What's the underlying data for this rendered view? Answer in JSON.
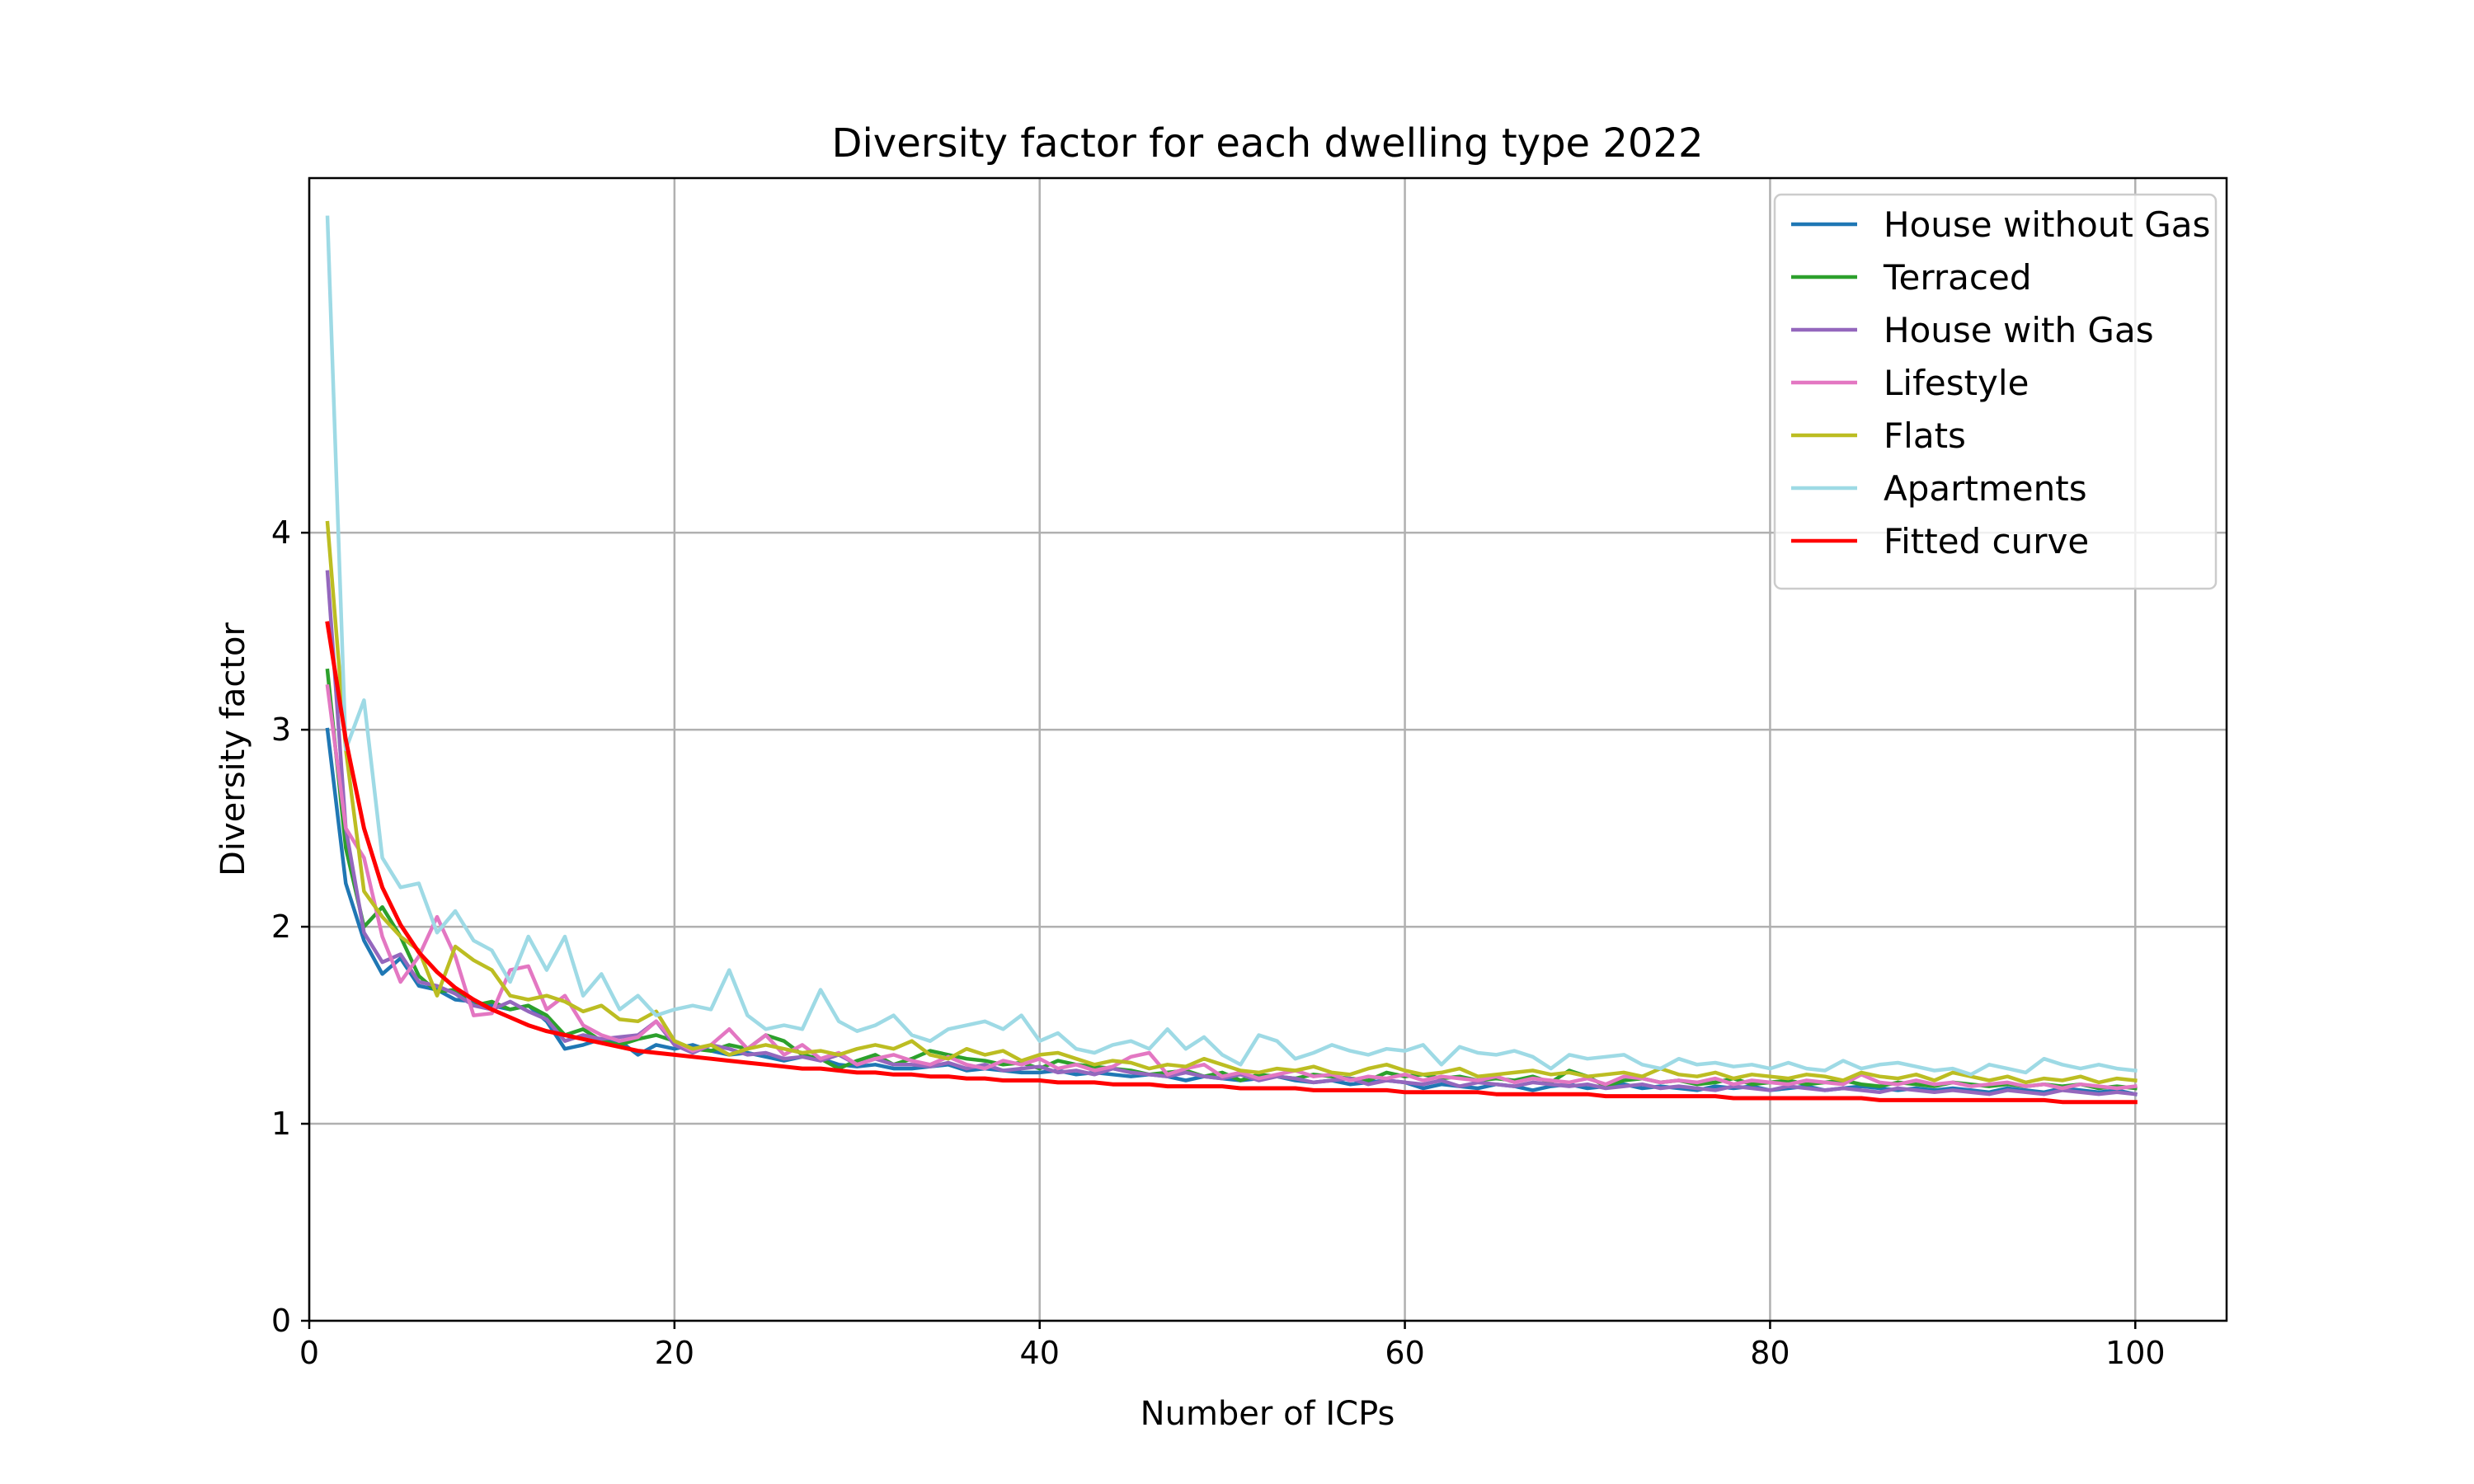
{
  "chart_data": {
    "type": "line",
    "title": "Diversity factor for each dwelling type 2022",
    "xlabel": "Number of ICPs",
    "ylabel": "Diversity factor",
    "xlim": [
      0,
      105
    ],
    "ylim": [
      0,
      5.8
    ],
    "xticks": [
      0,
      20,
      40,
      60,
      80,
      100
    ],
    "yticks": [
      0,
      1,
      2,
      3,
      4
    ],
    "grid": true,
    "legend_position": "top-right",
    "series": [
      {
        "name": "House without Gas",
        "color": "#1f77b4",
        "x_start": 1,
        "x_step": 1,
        "values": [
          3.0,
          2.22,
          1.93,
          1.76,
          1.84,
          1.7,
          1.68,
          1.63,
          1.62,
          1.6,
          1.58,
          1.6,
          1.52,
          1.38,
          1.4,
          1.43,
          1.42,
          1.35,
          1.4,
          1.38,
          1.4,
          1.37,
          1.35,
          1.36,
          1.34,
          1.32,
          1.34,
          1.33,
          1.3,
          1.29,
          1.3,
          1.28,
          1.28,
          1.29,
          1.3,
          1.27,
          1.28,
          1.27,
          1.26,
          1.26,
          1.27,
          1.25,
          1.26,
          1.25,
          1.24,
          1.25,
          1.24,
          1.22,
          1.24,
          1.23,
          1.22,
          1.23,
          1.24,
          1.22,
          1.21,
          1.22,
          1.2,
          1.21,
          1.22,
          1.21,
          1.18,
          1.2,
          1.19,
          1.18,
          1.2,
          1.19,
          1.17,
          1.19,
          1.2,
          1.18,
          1.19,
          1.2,
          1.18,
          1.19,
          1.18,
          1.17,
          1.19,
          1.18,
          1.19,
          1.17,
          1.18,
          1.19,
          1.17,
          1.18,
          1.19,
          1.18,
          1.17,
          1.18,
          1.17,
          1.18,
          1.17,
          1.16,
          1.18,
          1.17,
          1.16,
          1.18,
          1.17,
          1.16,
          1.17,
          1.15
        ]
      },
      {
        "name": "Terraced",
        "color": "#2ca02c",
        "x_start": 1,
        "x_step": 1,
        "values": [
          3.3,
          2.4,
          2.0,
          2.1,
          1.95,
          1.75,
          1.67,
          1.68,
          1.6,
          1.62,
          1.58,
          1.6,
          1.55,
          1.45,
          1.48,
          1.42,
          1.4,
          1.43,
          1.45,
          1.42,
          1.38,
          1.37,
          1.4,
          1.38,
          1.45,
          1.42,
          1.35,
          1.33,
          1.28,
          1.32,
          1.35,
          1.3,
          1.33,
          1.37,
          1.35,
          1.33,
          1.32,
          1.3,
          1.31,
          1.28,
          1.32,
          1.3,
          1.29,
          1.28,
          1.27,
          1.25,
          1.26,
          1.27,
          1.24,
          1.26,
          1.22,
          1.25,
          1.24,
          1.23,
          1.25,
          1.24,
          1.23,
          1.22,
          1.26,
          1.24,
          1.25,
          1.23,
          1.24,
          1.22,
          1.23,
          1.22,
          1.24,
          1.21,
          1.27,
          1.24,
          1.19,
          1.22,
          1.23,
          1.21,
          1.22,
          1.2,
          1.21,
          1.23,
          1.2,
          1.21,
          1.22,
          1.2,
          1.21,
          1.22,
          1.2,
          1.19,
          1.21,
          1.2,
          1.19,
          1.21,
          1.2,
          1.19,
          1.2,
          1.19,
          1.2,
          1.19,
          1.2,
          1.18,
          1.19,
          1.18
        ]
      },
      {
        "name": "House with Gas",
        "color": "#9467bd",
        "x_start": 1,
        "x_step": 1,
        "values": [
          3.8,
          2.5,
          1.97,
          1.82,
          1.86,
          1.72,
          1.7,
          1.66,
          1.6,
          1.58,
          1.62,
          1.57,
          1.53,
          1.42,
          1.45,
          1.43,
          1.44,
          1.45,
          1.52,
          1.4,
          1.36,
          1.4,
          1.38,
          1.35,
          1.36,
          1.33,
          1.34,
          1.32,
          1.35,
          1.3,
          1.33,
          1.3,
          1.3,
          1.29,
          1.31,
          1.28,
          1.3,
          1.27,
          1.28,
          1.29,
          1.26,
          1.27,
          1.25,
          1.28,
          1.26,
          1.25,
          1.24,
          1.26,
          1.24,
          1.23,
          1.25,
          1.22,
          1.24,
          1.23,
          1.21,
          1.22,
          1.23,
          1.2,
          1.22,
          1.21,
          1.2,
          1.22,
          1.19,
          1.21,
          1.2,
          1.19,
          1.21,
          1.2,
          1.19,
          1.2,
          1.18,
          1.19,
          1.2,
          1.18,
          1.19,
          1.18,
          1.17,
          1.19,
          1.18,
          1.17,
          1.19,
          1.18,
          1.17,
          1.18,
          1.17,
          1.16,
          1.18,
          1.17,
          1.16,
          1.17,
          1.16,
          1.15,
          1.17,
          1.16,
          1.15,
          1.17,
          1.16,
          1.15,
          1.16,
          1.15
        ]
      },
      {
        "name": "Lifestyle",
        "color": "#e377c2",
        "x_start": 1,
        "x_step": 1,
        "values": [
          3.22,
          2.5,
          2.35,
          1.95,
          1.72,
          1.85,
          2.05,
          1.85,
          1.55,
          1.56,
          1.78,
          1.8,
          1.58,
          1.65,
          1.5,
          1.45,
          1.42,
          1.44,
          1.52,
          1.42,
          1.37,
          1.4,
          1.48,
          1.38,
          1.45,
          1.35,
          1.4,
          1.33,
          1.36,
          1.3,
          1.33,
          1.35,
          1.32,
          1.3,
          1.34,
          1.3,
          1.28,
          1.32,
          1.3,
          1.33,
          1.28,
          1.3,
          1.27,
          1.29,
          1.34,
          1.36,
          1.25,
          1.28,
          1.3,
          1.24,
          1.26,
          1.23,
          1.25,
          1.27,
          1.24,
          1.25,
          1.22,
          1.24,
          1.23,
          1.25,
          1.22,
          1.24,
          1.23,
          1.22,
          1.24,
          1.21,
          1.23,
          1.22,
          1.21,
          1.23,
          1.2,
          1.24,
          1.23,
          1.21,
          1.22,
          1.21,
          1.23,
          1.2,
          1.22,
          1.21,
          1.2,
          1.22,
          1.21,
          1.2,
          1.25,
          1.21,
          1.2,
          1.22,
          1.2,
          1.21,
          1.19,
          1.2,
          1.21,
          1.19,
          1.2,
          1.18,
          1.2,
          1.19,
          1.18,
          1.19
        ]
      },
      {
        "name": "Flats",
        "color": "#bcbd22",
        "x_start": 1,
        "x_step": 1,
        "values": [
          4.05,
          2.9,
          2.18,
          2.05,
          1.95,
          1.88,
          1.65,
          1.9,
          1.83,
          1.78,
          1.65,
          1.63,
          1.65,
          1.62,
          1.57,
          1.6,
          1.53,
          1.52,
          1.57,
          1.42,
          1.38,
          1.4,
          1.35,
          1.38,
          1.4,
          1.38,
          1.36,
          1.37,
          1.35,
          1.38,
          1.4,
          1.38,
          1.42,
          1.35,
          1.33,
          1.38,
          1.35,
          1.37,
          1.32,
          1.35,
          1.36,
          1.33,
          1.3,
          1.32,
          1.31,
          1.28,
          1.3,
          1.29,
          1.33,
          1.3,
          1.27,
          1.26,
          1.28,
          1.27,
          1.29,
          1.26,
          1.25,
          1.28,
          1.3,
          1.27,
          1.25,
          1.26,
          1.28,
          1.24,
          1.25,
          1.26,
          1.27,
          1.25,
          1.26,
          1.24,
          1.25,
          1.26,
          1.24,
          1.28,
          1.25,
          1.24,
          1.26,
          1.23,
          1.25,
          1.24,
          1.23,
          1.25,
          1.24,
          1.22,
          1.26,
          1.24,
          1.23,
          1.25,
          1.22,
          1.26,
          1.24,
          1.22,
          1.24,
          1.21,
          1.23,
          1.22,
          1.24,
          1.21,
          1.23,
          1.22
        ]
      },
      {
        "name": "Apartments",
        "color": "#9edae5",
        "x_start": 1,
        "x_step": 1,
        "values": [
          5.6,
          2.9,
          3.15,
          2.35,
          2.2,
          2.22,
          1.97,
          2.08,
          1.93,
          1.88,
          1.72,
          1.95,
          1.78,
          1.95,
          1.65,
          1.76,
          1.58,
          1.65,
          1.55,
          1.58,
          1.6,
          1.58,
          1.78,
          1.55,
          1.48,
          1.5,
          1.48,
          1.68,
          1.52,
          1.47,
          1.5,
          1.55,
          1.45,
          1.42,
          1.48,
          1.5,
          1.52,
          1.48,
          1.55,
          1.42,
          1.46,
          1.38,
          1.36,
          1.4,
          1.42,
          1.38,
          1.48,
          1.38,
          1.44,
          1.35,
          1.3,
          1.45,
          1.42,
          1.33,
          1.36,
          1.4,
          1.37,
          1.35,
          1.38,
          1.37,
          1.4,
          1.3,
          1.39,
          1.36,
          1.35,
          1.37,
          1.34,
          1.28,
          1.35,
          1.33,
          1.34,
          1.35,
          1.3,
          1.28,
          1.33,
          1.3,
          1.31,
          1.29,
          1.3,
          1.28,
          1.31,
          1.28,
          1.27,
          1.32,
          1.28,
          1.3,
          1.31,
          1.29,
          1.27,
          1.28,
          1.25,
          1.3,
          1.28,
          1.26,
          1.33,
          1.3,
          1.28,
          1.3,
          1.28,
          1.27
        ]
      },
      {
        "name": "Fitted curve",
        "color": "#ff0000",
        "x_start": 1,
        "x_step": 1,
        "values": [
          3.54,
          2.95,
          2.5,
          2.2,
          2.01,
          1.87,
          1.77,
          1.69,
          1.63,
          1.58,
          1.54,
          1.5,
          1.47,
          1.45,
          1.43,
          1.41,
          1.39,
          1.37,
          1.36,
          1.35,
          1.34,
          1.33,
          1.32,
          1.31,
          1.3,
          1.29,
          1.28,
          1.28,
          1.27,
          1.26,
          1.26,
          1.25,
          1.25,
          1.24,
          1.24,
          1.23,
          1.23,
          1.22,
          1.22,
          1.22,
          1.21,
          1.21,
          1.21,
          1.2,
          1.2,
          1.2,
          1.19,
          1.19,
          1.19,
          1.19,
          1.18,
          1.18,
          1.18,
          1.18,
          1.17,
          1.17,
          1.17,
          1.17,
          1.17,
          1.16,
          1.16,
          1.16,
          1.16,
          1.16,
          1.15,
          1.15,
          1.15,
          1.15,
          1.15,
          1.15,
          1.14,
          1.14,
          1.14,
          1.14,
          1.14,
          1.14,
          1.14,
          1.13,
          1.13,
          1.13,
          1.13,
          1.13,
          1.13,
          1.13,
          1.13,
          1.12,
          1.12,
          1.12,
          1.12,
          1.12,
          1.12,
          1.12,
          1.12,
          1.12,
          1.12,
          1.11,
          1.11,
          1.11,
          1.11,
          1.11
        ]
      }
    ]
  }
}
